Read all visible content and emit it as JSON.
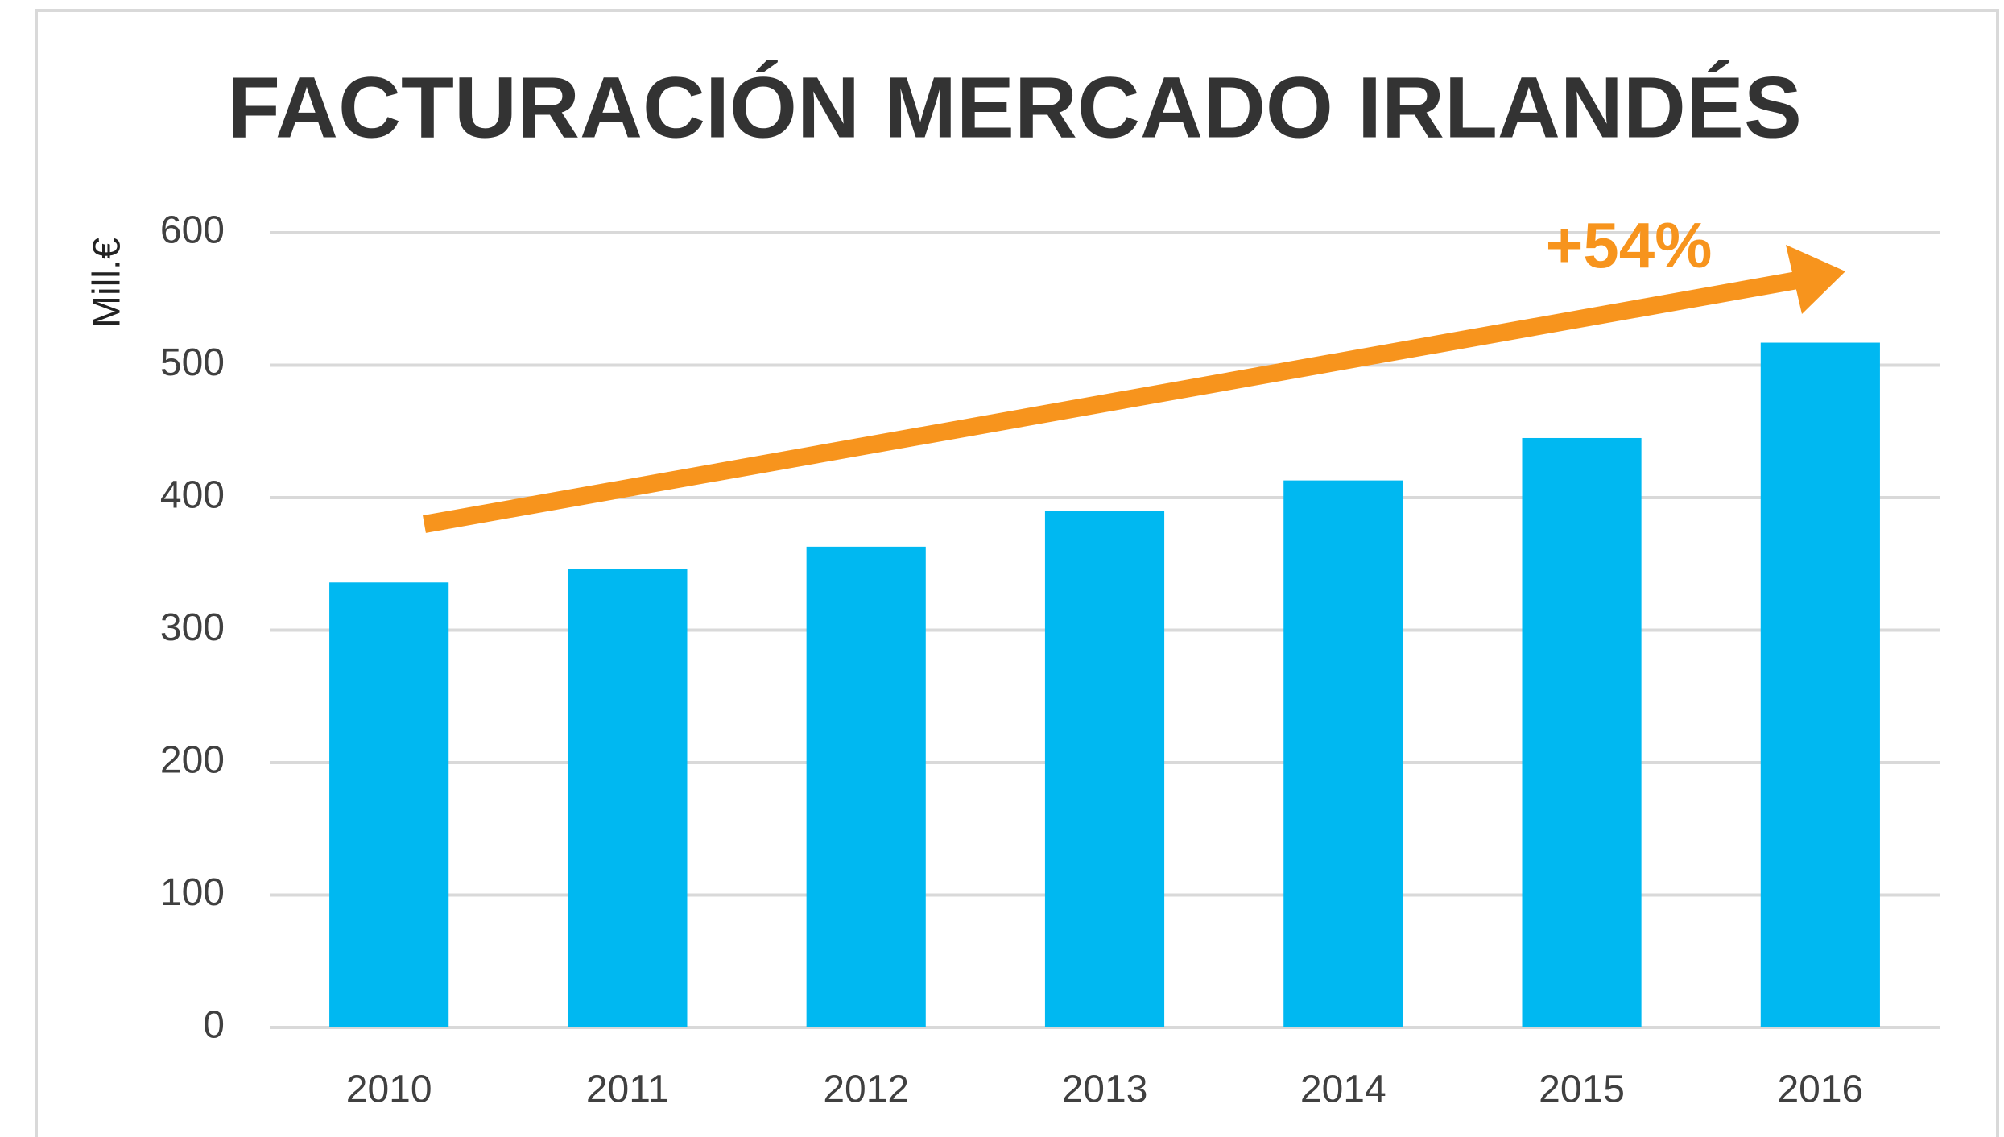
{
  "chart_data": {
    "type": "bar",
    "title": "FACTURACIÓN MERCADO IRLANDÉS",
    "y_label": "Mill.€",
    "annotation": "+54%",
    "categories": [
      "2010",
      "2011",
      "2012",
      "2013",
      "2014",
      "2015",
      "2016"
    ],
    "values": [
      336,
      346,
      363,
      390,
      413,
      445,
      517
    ],
    "color": "#00b8f1",
    "ylim": [
      0,
      600
    ],
    "yticks": [
      0,
      100,
      200,
      300,
      400,
      500,
      600
    ],
    "grid": true
  }
}
